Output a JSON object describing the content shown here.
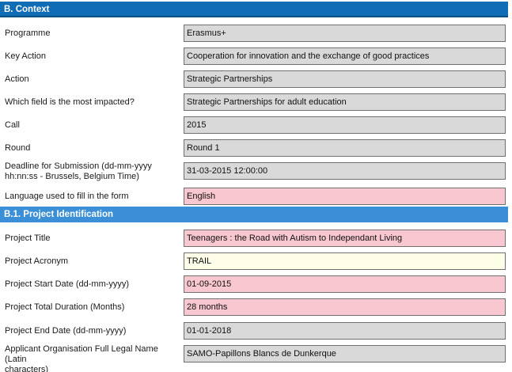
{
  "sections": {
    "context_title": "B. Context",
    "project_identification_title": "B.1. Project Identification"
  },
  "context_rows": [
    {
      "label": "Programme",
      "value": "Erasmus+"
    },
    {
      "label": "Key Action",
      "value": "Cooperation for innovation and the exchange of good practices"
    },
    {
      "label": "Action",
      "value": "Strategic Partnerships"
    },
    {
      "label": "Which field is the most impacted?",
      "value": "Strategic Partnerships for adult education"
    },
    {
      "label": "Call",
      "value": "2015"
    },
    {
      "label": "Round",
      "value": "Round 1"
    },
    {
      "label_line1": "Deadline for Submission (dd-mm-yyyy",
      "label_line2": "hh:nn:ss - Brussels, Belgium Time)",
      "value": "31-03-2015 12:00:00"
    },
    {
      "label": "Language used to fill in the form",
      "value": "English"
    }
  ],
  "identification_rows": [
    {
      "label": "Project Title",
      "value": "Teenagers : the Road with Autism to Independant Living"
    },
    {
      "label": "Project Acronym",
      "value": "TRAIL"
    },
    {
      "label": "Project Start Date (dd-mm-yyyy)",
      "value": "01-09-2015"
    },
    {
      "label": "Project Total Duration (Months)",
      "value": "28 months"
    },
    {
      "label": "Project End Date (dd-mm-yyyy)",
      "value": "01-01-2018"
    },
    {
      "label_line1": "Applicant Organisation Full Legal Name (Latin",
      "label_line2": "characters)",
      "value": "SAMO-Papillons Blancs de Dunkerque"
    }
  ],
  "colors": {
    "header_dark": "#0f6db5",
    "header_light": "#3b8fd6",
    "readonly_field": "#d9d9d9",
    "required_field": "#f9c7cf",
    "editable_field": "#fdfde8"
  }
}
